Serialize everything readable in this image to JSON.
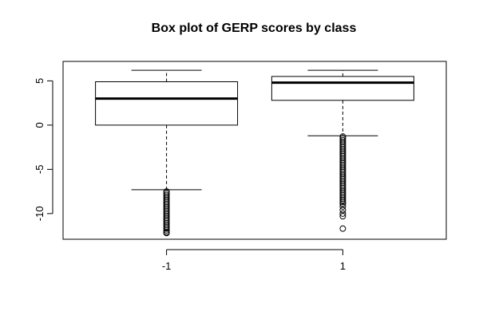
{
  "chart_data": {
    "type": "boxplot",
    "title": "Box plot of GERP scores by class",
    "xlabel": "",
    "ylabel": "",
    "ylim": [
      -12.9,
      7.2
    ],
    "y_ticks": [
      5,
      0,
      -5,
      -10
    ],
    "y_tick_labels": [
      "5",
      "0",
      "-5",
      "-10"
    ],
    "categories": [
      "-1",
      "1"
    ],
    "boxes": [
      {
        "category": "-1",
        "whisker_low": -7.3,
        "q1": 0.0,
        "median": 3.0,
        "q3": 4.9,
        "whisker_high": 6.2,
        "outliers": [
          -7.5,
          -7.7,
          -7.9,
          -8.1,
          -8.3,
          -8.5,
          -8.7,
          -8.9,
          -9.1,
          -9.3,
          -9.5,
          -9.7,
          -9.9,
          -10.1,
          -10.3,
          -10.5,
          -10.7,
          -10.9,
          -11.1,
          -11.3,
          -11.5,
          -11.7,
          -11.9,
          -12.1,
          -12.2
        ]
      },
      {
        "category": "1",
        "whisker_low": -1.2,
        "q1": 2.8,
        "median": 4.8,
        "q3": 5.5,
        "whisker_high": 6.2,
        "outliers": [
          -1.3,
          -1.5,
          -1.7,
          -1.9,
          -2.1,
          -2.3,
          -2.5,
          -2.7,
          -2.9,
          -3.1,
          -3.3,
          -3.5,
          -3.7,
          -3.9,
          -4.1,
          -4.3,
          -4.5,
          -4.7,
          -4.9,
          -5.1,
          -5.3,
          -5.5,
          -5.7,
          -5.9,
          -6.1,
          -6.3,
          -6.5,
          -6.7,
          -6.9,
          -7.1,
          -7.3,
          -7.5,
          -7.7,
          -7.9,
          -8.1,
          -8.3,
          -8.5,
          -8.7,
          -8.9,
          -9.2,
          -9.6,
          -10.0,
          -10.3,
          -11.7
        ]
      }
    ],
    "grid": false,
    "legend": "none",
    "colors": {
      "box_fill": "#ffffff",
      "stroke": "#000000"
    }
  }
}
